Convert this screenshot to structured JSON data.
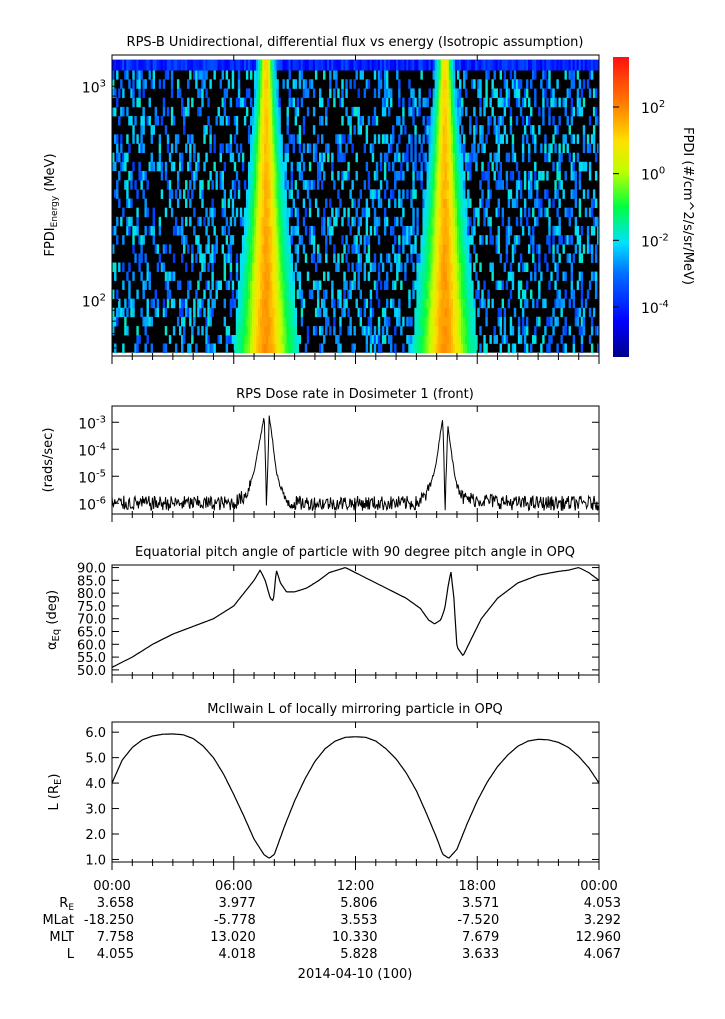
{
  "colors": {
    "background": "#ffffff",
    "axis": "#000000",
    "spectro_fill": "#000000",
    "line": "#000000"
  },
  "chart_data": [
    {
      "type": "heatmap",
      "title": "RPS-B  Unidirectional, differential flux vs energy (Isotropic assumption)",
      "ylabel_main": "FPDI",
      "ylabel_sub": "Energy",
      "ylabel_unit": " (MeV)",
      "yscale": "log",
      "ylim": [
        55,
        1400
      ],
      "yticks": [
        {
          "value": 100,
          "base": "10",
          "exp": "2"
        },
        {
          "value": 1000,
          "base": "10",
          "exp": "3"
        }
      ],
      "xlim_hours": [
        0,
        24
      ],
      "energy_channels_mev": [
        60,
        66,
        72,
        80,
        88,
        97,
        107,
        118,
        130,
        143,
        158,
        174,
        192,
        212,
        234,
        258,
        285,
        314,
        347,
        383,
        423,
        466,
        515,
        568,
        627,
        692,
        763,
        842,
        930,
        1027,
        1133,
        1250
      ],
      "belt_crossings_hours": [
        7.6,
        16.4
      ],
      "colorbar": {
        "label": "FPDI (#/cm^2/s/sr/MeV)",
        "scale": "log",
        "range_exponent": [
          -5.5,
          3.5
        ],
        "ticks": [
          {
            "base": "10",
            "exp": "2",
            "value": 2
          },
          {
            "base": "10",
            "exp": "0",
            "value": 0
          },
          {
            "base": "10",
            "exp": "-2",
            "value": -2
          },
          {
            "base": "10",
            "exp": "-4",
            "value": -4
          }
        ]
      }
    },
    {
      "type": "line",
      "title": "RPS  Dose rate in Dosimeter 1 (front)",
      "ylabel": "(rads/sec)",
      "yscale": "log",
      "ylim": [
        4e-07,
        0.004
      ],
      "yticks": [
        {
          "value": 1e-06,
          "base": "10",
          "exp": "-6"
        },
        {
          "value": 1e-05,
          "base": "10",
          "exp": "-5"
        },
        {
          "value": 0.0001,
          "base": "10",
          "exp": "-4"
        },
        {
          "value": 0.001,
          "base": "10",
          "exp": "-3"
        }
      ],
      "x_hours": [
        0,
        6.0,
        6.6,
        7.0,
        7.3,
        7.5,
        7.62,
        7.75,
        7.9,
        8.1,
        8.4,
        8.8,
        10.5,
        14.0,
        15.0,
        15.5,
        15.9,
        16.15,
        16.3,
        16.42,
        16.55,
        16.7,
        16.9,
        17.3,
        20.0,
        24.0
      ],
      "series": [
        {
          "name": "Dosimeter 1",
          "values": [
            1e-06,
            1e-06,
            2e-06,
            1.5e-05,
            0.00025,
            0.0017,
            6e-07,
            0.0017,
            0.00025,
            1.5e-05,
            2e-06,
            1e-06,
            1e-06,
            1e-06,
            1e-06,
            2e-06,
            1.5e-05,
            0.00025,
            0.0016,
            6e-07,
            0.0009,
            0.0001,
            1e-05,
            1.5e-06,
            1e-06,
            1e-06
          ]
        }
      ]
    },
    {
      "type": "line",
      "title": "Equatorial pitch angle of particle with 90 degree pitch angle in OPQ",
      "ylabel_main": "α",
      "ylabel_sub": "Eq",
      "ylabel_unit": " (deg)",
      "ylim": [
        48,
        91
      ],
      "yticks": [
        50,
        55,
        60,
        65,
        70,
        75,
        80,
        85,
        90
      ],
      "x_hours": [
        0,
        1,
        2,
        3,
        4,
        5,
        6,
        6.5,
        7.0,
        7.3,
        7.55,
        7.8,
        7.95,
        8.1,
        8.3,
        8.6,
        9,
        9.6,
        10.2,
        10.7,
        11.5,
        12.5,
        13.5,
        14.5,
        15.2,
        15.6,
        15.9,
        16.2,
        16.4,
        16.55,
        16.7,
        16.85,
        17.0,
        17.3,
        17.7,
        18.2,
        19,
        20,
        21,
        22,
        22.5,
        23.0,
        23.5,
        24
      ],
      "series": [
        {
          "name": "alpha_eq",
          "values": [
            51,
            55,
            60,
            64,
            67,
            70,
            75,
            80,
            85,
            89,
            85,
            78,
            77,
            89,
            84,
            80.5,
            80.5,
            82,
            85,
            88,
            90,
            86,
            82,
            78,
            74,
            69.5,
            68,
            69.5,
            74,
            82,
            88.5,
            78,
            59,
            55.5,
            62,
            70,
            78,
            84,
            87,
            88.5,
            89,
            90,
            88,
            85
          ]
        }
      ]
    },
    {
      "type": "line",
      "title": "McIlwain L of locally mirroring particle in OPQ",
      "ylabel_main": "L (R",
      "ylabel_sub": "E",
      "ylabel_unit": ")",
      "ylim": [
        0.9,
        6.4
      ],
      "yticks": [
        1,
        2,
        3,
        4,
        5,
        6
      ],
      "x_hours": [
        0,
        0.5,
        1,
        1.5,
        2,
        2.5,
        3,
        3.5,
        4,
        4.5,
        5,
        5.5,
        6,
        6.5,
        7,
        7.5,
        7.75,
        8,
        8.5,
        9,
        9.5,
        10,
        10.5,
        11,
        11.5,
        12,
        12.5,
        13,
        13.5,
        14,
        14.5,
        15,
        15.5,
        16,
        16.3,
        16.6,
        17,
        17.5,
        18,
        18.5,
        19,
        19.5,
        20,
        20.5,
        21,
        21.5,
        22,
        22.5,
        23,
        23.5,
        24
      ],
      "series": [
        {
          "name": "L",
          "values": [
            4.0,
            4.9,
            5.4,
            5.7,
            5.85,
            5.92,
            5.93,
            5.9,
            5.75,
            5.45,
            5.0,
            4.35,
            3.55,
            2.7,
            1.8,
            1.18,
            1.05,
            1.2,
            2.3,
            3.3,
            4.15,
            4.85,
            5.35,
            5.65,
            5.8,
            5.82,
            5.8,
            5.65,
            5.35,
            4.95,
            4.4,
            3.7,
            2.8,
            1.85,
            1.2,
            1.05,
            1.4,
            2.4,
            3.3,
            4.05,
            4.65,
            5.1,
            5.45,
            5.65,
            5.72,
            5.7,
            5.6,
            5.4,
            5.05,
            4.6,
            4.0
          ]
        }
      ]
    }
  ],
  "x_axis": {
    "ticks_hours": [
      0,
      6,
      12,
      18,
      24
    ],
    "tick_labels": [
      "00:00",
      "06:00",
      "12:00",
      "18:00",
      "00:00"
    ],
    "minor_ticks_hours": [
      1,
      2,
      3,
      4,
      5,
      7,
      8,
      9,
      10,
      11,
      13,
      14,
      15,
      16,
      17,
      19,
      20,
      21,
      22,
      23
    ]
  },
  "ephemeris": [
    {
      "label": "R",
      "label_sub": "E",
      "values": [
        "3.658",
        "3.977",
        "5.806",
        "3.571",
        "4.053"
      ]
    },
    {
      "label": "MLat",
      "label_sub": "",
      "values": [
        "-18.250",
        "-5.778",
        "3.553",
        "-7.520",
        "3.292"
      ]
    },
    {
      "label": "MLT",
      "label_sub": "",
      "values": [
        "7.758",
        "13.020",
        "10.330",
        "7.679",
        "12.960"
      ]
    },
    {
      "label": "L",
      "label_sub": "",
      "values": [
        "4.055",
        "4.018",
        "5.828",
        "3.633",
        "4.067"
      ]
    }
  ],
  "date_label": "2014-04-10 (100)"
}
